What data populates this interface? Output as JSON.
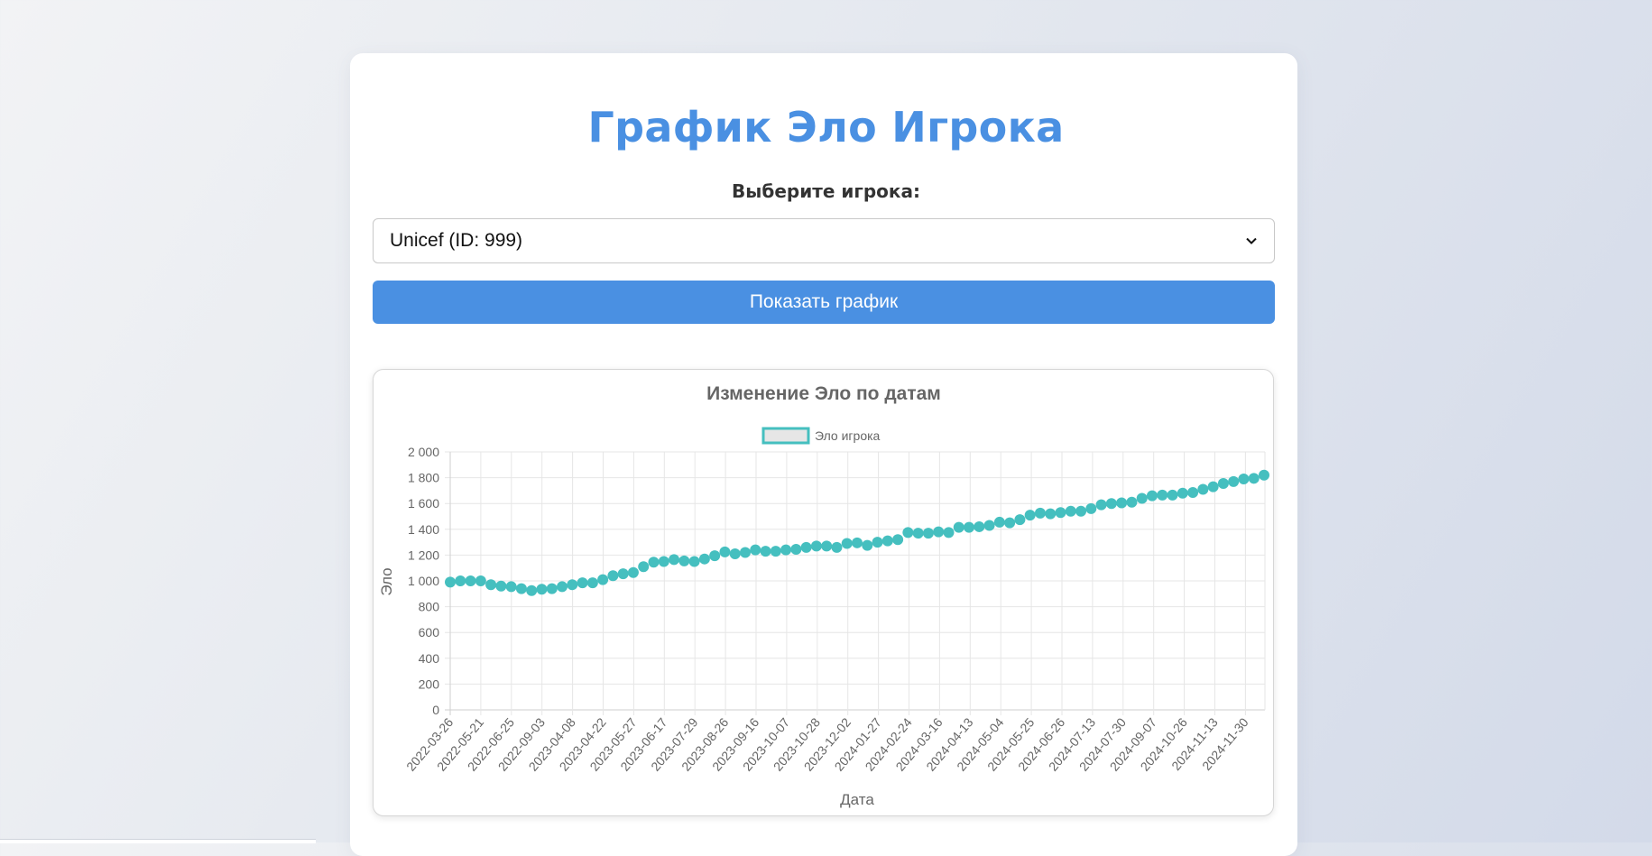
{
  "page": {
    "title": "График Эло Игрока",
    "select_label": "Выберите игрока:",
    "selected_player": "Unicef (ID: 999)",
    "show_button": "Показать график"
  },
  "colors": {
    "accent": "#4a90e2",
    "series": "#45bfbf",
    "title_text": "#666666",
    "axis_text": "#666666"
  },
  "icons": {
    "select_arrow": "chevron-down-icon"
  },
  "chart_data": {
    "type": "scatter",
    "title": "Изменение Эло по датам",
    "xlabel": "Дата",
    "ylabel": "Эло",
    "ylim": [
      0,
      2000
    ],
    "yticks": [
      "0",
      "200",
      "400",
      "600",
      "800",
      "1 000",
      "1 200",
      "1 400",
      "1 600",
      "1 800",
      "2 000"
    ],
    "grid": true,
    "legend_position": "top",
    "x_tick_labels": [
      "2022-03-26",
      "2022-05-21",
      "2022-06-25",
      "2022-09-03",
      "2023-04-08",
      "2023-04-22",
      "2023-05-27",
      "2023-06-17",
      "2023-07-29",
      "2023-08-26",
      "2023-09-16",
      "2023-10-07",
      "2023-10-28",
      "2023-12-02",
      "2024-01-27",
      "2024-02-24",
      "2024-03-16",
      "2024-04-13",
      "2024-05-04",
      "2024-05-25",
      "2024-06-26",
      "2024-07-13",
      "2024-07-30",
      "2024-09-07",
      "2024-10-26",
      "2024-11-13",
      "2024-11-30"
    ],
    "series": [
      {
        "name": "Эло игрока",
        "values": [
          990,
          1000,
          1000,
          1000,
          970,
          960,
          955,
          940,
          925,
          935,
          940,
          955,
          970,
          985,
          985,
          1010,
          1040,
          1055,
          1065,
          1110,
          1145,
          1150,
          1165,
          1155,
          1150,
          1170,
          1195,
          1225,
          1210,
          1220,
          1240,
          1230,
          1230,
          1240,
          1245,
          1260,
          1270,
          1270,
          1260,
          1290,
          1295,
          1275,
          1300,
          1310,
          1320,
          1375,
          1370,
          1370,
          1380,
          1375,
          1415,
          1415,
          1420,
          1430,
          1455,
          1450,
          1475,
          1510,
          1525,
          1520,
          1530,
          1540,
          1540,
          1560,
          1590,
          1600,
          1605,
          1610,
          1640,
          1660,
          1665,
          1665,
          1680,
          1685,
          1710,
          1730,
          1755,
          1770,
          1790,
          1795,
          1820
        ]
      }
    ]
  }
}
